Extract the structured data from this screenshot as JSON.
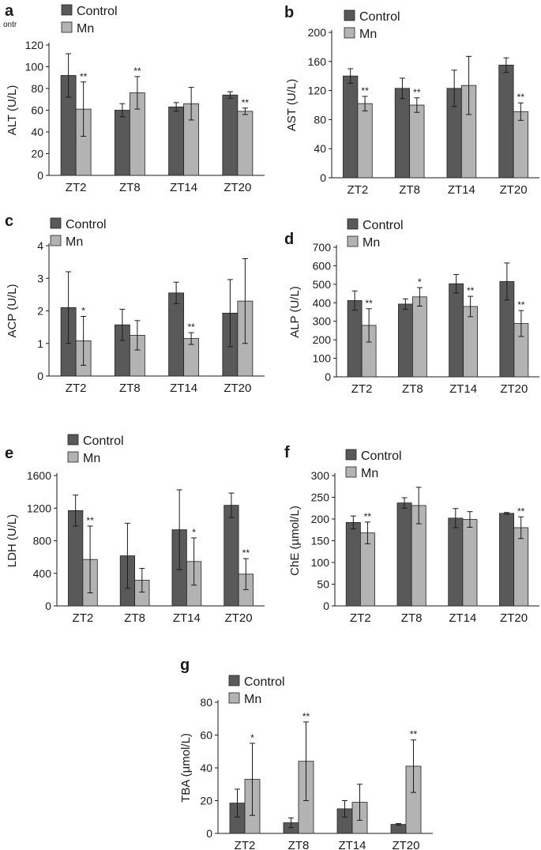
{
  "figure": {
    "stray_text": "ontr",
    "colors": {
      "control": "#595959",
      "mn": "#b3b3b3",
      "axis": "#1a1a1a",
      "stroke": "#222222"
    }
  },
  "chart_data": [
    {
      "panel": "a",
      "type": "bar",
      "categories": [
        "ZT2",
        "ZT8",
        "ZT14",
        "ZT20"
      ],
      "ylabel": "ALT (U/L)",
      "ylim": [
        0,
        120
      ],
      "yticks": [
        0,
        20,
        40,
        60,
        80,
        100,
        120
      ],
      "legend": [
        "Control",
        "Mn"
      ],
      "legend_position": "top",
      "series": [
        {
          "name": "Control",
          "values": [
            92,
            60,
            63,
            74
          ],
          "errors": [
            20,
            6,
            4,
            3
          ]
        },
        {
          "name": "Mn",
          "values": [
            61,
            76,
            66,
            59
          ],
          "errors": [
            25,
            15,
            15,
            3
          ]
        }
      ],
      "significance": [
        "**",
        "**",
        "",
        "**"
      ]
    },
    {
      "panel": "b",
      "type": "bar",
      "categories": [
        "ZT2",
        "ZT8",
        "ZT14",
        "ZT20"
      ],
      "ylabel": "AST (U/L)",
      "ylim": [
        0,
        200
      ],
      "yticks": [
        0,
        40,
        80,
        120,
        160,
        200
      ],
      "legend": [
        "Control",
        "Mn"
      ],
      "legend_position": "top",
      "series": [
        {
          "name": "Control",
          "values": [
            140,
            123,
            123,
            155
          ],
          "errors": [
            10,
            14,
            25,
            10
          ]
        },
        {
          "name": "Mn",
          "values": [
            102,
            100,
            127,
            91
          ],
          "errors": [
            10,
            10,
            40,
            12
          ]
        }
      ],
      "significance": [
        "**",
        "**",
        "",
        "**"
      ]
    },
    {
      "panel": "c",
      "type": "bar",
      "categories": [
        "ZT2",
        "ZT8",
        "ZT14",
        "ZT20"
      ],
      "ylabel": "ACP (U/L)",
      "ylim": [
        0,
        4
      ],
      "yticks": [
        0,
        1,
        2,
        3,
        4
      ],
      "legend": [
        "Control",
        "Mn"
      ],
      "legend_position": "top",
      "series": [
        {
          "name": "Control",
          "values": [
            2.1,
            1.57,
            2.55,
            1.93
          ],
          "errors": [
            1.1,
            0.48,
            0.33,
            1.03
          ]
        },
        {
          "name": "Mn",
          "values": [
            1.08,
            1.25,
            1.15,
            2.3
          ],
          "errors": [
            0.75,
            0.45,
            0.18,
            1.3
          ]
        }
      ],
      "significance": [
        "*",
        "",
        "**",
        ""
      ]
    },
    {
      "panel": "d",
      "type": "bar",
      "categories": [
        "ZT2",
        "ZT8",
        "ZT14",
        "ZT20"
      ],
      "ylabel": "ALP (U/L)",
      "ylim": [
        0,
        700
      ],
      "yticks": [
        0,
        100,
        200,
        300,
        400,
        500,
        600,
        700
      ],
      "legend": [
        "Control",
        "Mn"
      ],
      "legend_position": "top",
      "series": [
        {
          "name": "Control",
          "values": [
            412,
            393,
            503,
            515
          ],
          "errors": [
            52,
            28,
            50,
            100
          ]
        },
        {
          "name": "Mn",
          "values": [
            278,
            432,
            380,
            288
          ],
          "errors": [
            90,
            50,
            55,
            70
          ]
        }
      ],
      "significance": [
        "**",
        "*",
        "**",
        "**"
      ]
    },
    {
      "panel": "e",
      "type": "bar",
      "categories": [
        "ZT2",
        "ZT8",
        "ZT14",
        "ZT20"
      ],
      "ylabel": "LDH (U/L)",
      "ylim": [
        0,
        1600
      ],
      "yticks": [
        0,
        400,
        800,
        1200,
        1600
      ],
      "legend": [
        "Control",
        "Mn"
      ],
      "legend_position": "top",
      "series": [
        {
          "name": "Control",
          "values": [
            1170,
            615,
            935,
            1235
          ],
          "errors": [
            190,
            400,
            490,
            150
          ]
        },
        {
          "name": "Mn",
          "values": [
            570,
            315,
            545,
            390
          ],
          "errors": [
            410,
            145,
            290,
            190
          ]
        }
      ],
      "significance": [
        "**",
        "",
        "*",
        "**"
      ]
    },
    {
      "panel": "f",
      "type": "bar",
      "categories": [
        "ZT2",
        "ZT8",
        "ZT14",
        "ZT20"
      ],
      "ylabel": "ChE (µmol/L)",
      "ylim": [
        0,
        300
      ],
      "yticks": [
        0,
        50,
        100,
        150,
        200,
        250,
        300
      ],
      "legend": [
        "Control",
        "Mn"
      ],
      "legend_position": "top",
      "series": [
        {
          "name": "Control",
          "values": [
            192,
            237,
            202,
            213
          ],
          "errors": [
            15,
            12,
            22,
            2
          ]
        },
        {
          "name": "Mn",
          "values": [
            168,
            231,
            199,
            180
          ],
          "errors": [
            25,
            42,
            18,
            25
          ]
        }
      ],
      "significance": [
        "**",
        "",
        "",
        "**"
      ]
    },
    {
      "panel": "g",
      "type": "bar",
      "categories": [
        "ZT2",
        "ZT8",
        "ZT14",
        "ZT20"
      ],
      "ylabel": "TBA (µmol/L)",
      "ylim": [
        0,
        80
      ],
      "yticks": [
        0,
        20,
        40,
        60,
        80
      ],
      "legend": [
        "Control",
        "Mn"
      ],
      "legend_position": "top",
      "series": [
        {
          "name": "Control",
          "values": [
            18.5,
            6.5,
            15,
            5.5
          ],
          "errors": [
            8.5,
            3,
            5,
            0.5
          ]
        },
        {
          "name": "Mn",
          "values": [
            33,
            44,
            19,
            41
          ],
          "errors": [
            22,
            24,
            11,
            16
          ]
        }
      ],
      "significance": [
        "*",
        "**",
        "",
        "**"
      ]
    }
  ]
}
